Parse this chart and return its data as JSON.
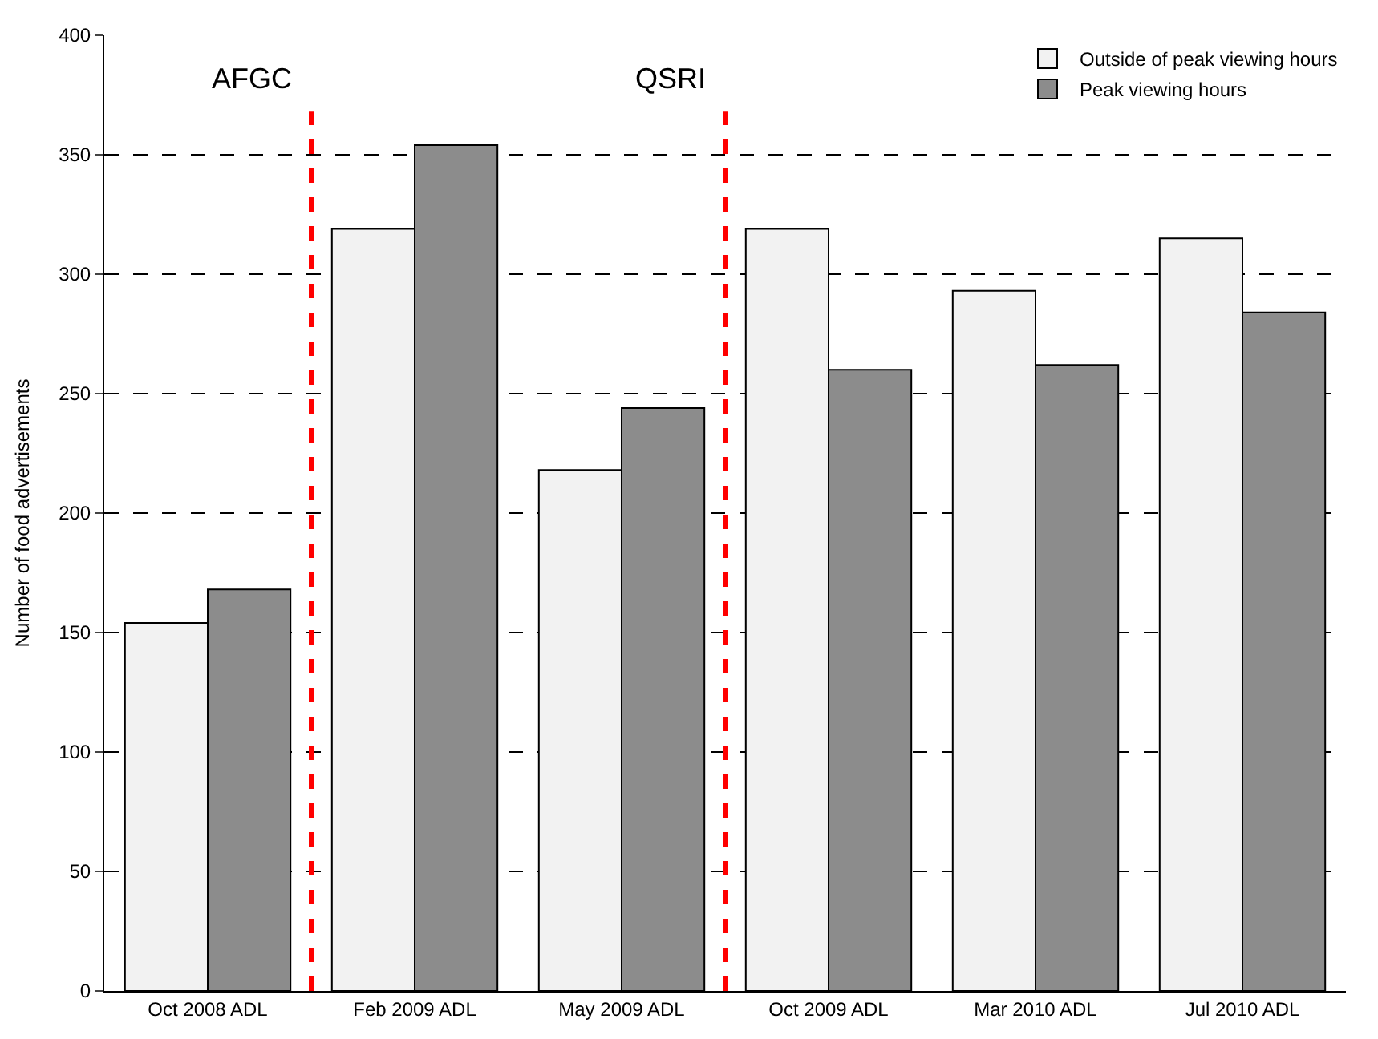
{
  "chart_data": {
    "type": "bar",
    "ylabel": "Number of food advertisements",
    "categories": [
      "Oct 2008 ADL",
      "Feb 2009 ADL",
      "May 2009 ADL",
      "Oct 2009 ADL",
      "Mar 2010 ADL",
      "Jul 2010 ADL"
    ],
    "series": [
      {
        "name": "Outside of peak viewing hours",
        "color": "#f2f2f2",
        "values": [
          154,
          319,
          218,
          319,
          293,
          315
        ]
      },
      {
        "name": "Peak viewing hours",
        "color": "#8c8c8c",
        "values": [
          168,
          354,
          244,
          260,
          262,
          284
        ]
      }
    ],
    "ylim": [
      0,
      400
    ],
    "yticks": [
      0,
      50,
      100,
      150,
      200,
      250,
      300,
      350,
      400
    ],
    "grid": "y",
    "legend": "top right",
    "annotations": [
      "AFGC",
      "QSRI"
    ]
  }
}
